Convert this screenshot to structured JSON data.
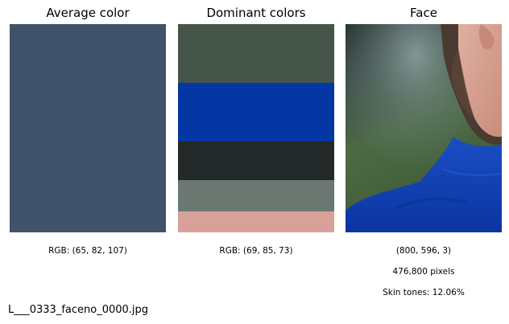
{
  "columns": {
    "average": {
      "title": "Average color",
      "caption": "RGB: (65, 82, 107)",
      "color": "#41526b"
    },
    "dominant": {
      "title": "Dominant colors",
      "caption": "RGB: (69, 85, 73)",
      "swatches": [
        {
          "color": "#455549",
          "share": 0.28
        },
        {
          "color": "#0537a4",
          "share": 0.28
        },
        {
          "color": "#232828",
          "share": 0.185
        },
        {
          "color": "#6a7871",
          "share": 0.15
        },
        {
          "color": "#d7a199",
          "share": 0.105
        }
      ]
    },
    "face": {
      "title": "Face",
      "shape_caption": "(800, 596, 3)",
      "pixels_caption": "476,800 pixels",
      "skin_caption": "Skin tones: 12.06%"
    }
  },
  "filename": "L___0333_faceno_0000.jpg"
}
